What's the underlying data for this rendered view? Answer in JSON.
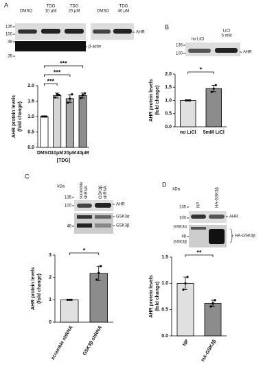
{
  "panels": [
    {
      "letter": "A",
      "lanes": [
        [
          "DMSO"
        ],
        [
          "TDG",
          "10 μM"
        ],
        [
          "TDG",
          "20 μM"
        ],
        [
          "DMSO"
        ],
        [
          "TDG",
          "40 μM"
        ]
      ],
      "markers": [
        "135",
        "100",
        "48",
        "35"
      ],
      "bands": [
        "AHR",
        "β-actin"
      ]
    },
    {
      "letter": "B",
      "lanes": [
        [
          "no LiCl"
        ],
        [
          "LiCl",
          "5 mM"
        ]
      ],
      "markers": [
        "135",
        "100"
      ],
      "bands": [
        "AHR"
      ]
    },
    {
      "letter": "C",
      "kda": "kDa",
      "lanes": [
        [
          "scramble",
          "shRNA"
        ],
        [
          "GSK3β",
          "shRNA"
        ]
      ],
      "markers": [
        "135",
        "100",
        "48"
      ],
      "bands": [
        "AHR",
        "GSK3α",
        "GSK3β"
      ]
    },
    {
      "letter": "D",
      "kda": "kDa",
      "lanes": [
        [
          "NP"
        ],
        [
          "HA-GSK3β"
        ]
      ],
      "markers": [
        "135",
        "100",
        "48"
      ],
      "bands": [
        "AHR",
        "GSK3α",
        "GSK3β",
        "HA-GSK3β"
      ]
    }
  ],
  "chart_data": [
    {
      "type": "bar",
      "y_label": [
        "AHR protein levels",
        "(fold change)"
      ],
      "x_label": "[TDG]",
      "categories": [
        "DMSO",
        "10μM",
        "20μM",
        "40μM"
      ],
      "values": [
        1.0,
        1.68,
        1.58,
        1.68
      ],
      "errors": [
        0.02,
        0.08,
        0.13,
        0.08
      ],
      "points": [
        [
          1.0,
          1.0,
          1.0
        ],
        [
          1.62,
          1.72,
          1.7
        ],
        [
          1.45,
          1.58,
          1.72
        ],
        [
          1.6,
          1.7,
          1.75
        ]
      ],
      "colors": [
        "#ffffff",
        "#d6d6d6",
        "#a8a8a8",
        "#8c8c8c"
      ],
      "significance": [
        "***",
        "***",
        "***"
      ],
      "ylim": [
        0,
        2
      ],
      "yticks": [
        {
          "value": 0,
          "label": "0.0"
        },
        {
          "value": 0.5,
          "label": "0.5"
        },
        {
          "value": 1,
          "label": "1.0"
        },
        {
          "value": 1.5,
          "label": "1.5"
        },
        {
          "value": 2,
          "label": "2.0"
        }
      ]
    },
    {
      "type": "bar",
      "y_label": [
        "AHR protein levels",
        "(fold change)"
      ],
      "categories": [
        "no LiCl",
        "5mM LiCl"
      ],
      "values": [
        1.0,
        1.45
      ],
      "errors": [
        0.02,
        0.12
      ],
      "points": [
        [
          1.0,
          1.0,
          1.0
        ],
        [
          1.32,
          1.45,
          1.58
        ]
      ],
      "colors": [
        "#e0e0e0",
        "#8c8c8c"
      ],
      "significance": [
        "*"
      ],
      "ylim": [
        0,
        2
      ],
      "yticks": [
        {
          "value": 0,
          "label": "0.0"
        },
        {
          "value": 0.5,
          "label": "0.5"
        },
        {
          "value": 1,
          "label": "1.0"
        },
        {
          "value": 1.5,
          "label": "1.5"
        },
        {
          "value": 2,
          "label": "2.0"
        }
      ]
    },
    {
      "type": "bar",
      "y_label": [
        "AHR protein levels",
        "(fold change)"
      ],
      "categories": [
        "scramble shRNA",
        "GSK3β shRNA"
      ],
      "values": [
        1.0,
        2.18
      ],
      "errors": [
        0.02,
        0.32
      ],
      "points": [
        [
          1.0,
          1.0,
          1.0
        ],
        [
          1.9,
          2.2,
          2.5
        ]
      ],
      "colors": [
        "#e0e0e0",
        "#8c8c8c"
      ],
      "significance": [
        "*"
      ],
      "ylim": [
        0,
        3
      ],
      "yticks": [
        0,
        1,
        2,
        3
      ]
    },
    {
      "type": "bar",
      "y_label": [
        "AHR protein levels",
        "(fold change)"
      ],
      "categories": [
        "NP",
        "HA-GSK3β"
      ],
      "values": [
        1.0,
        0.62
      ],
      "errors": [
        0.12,
        0.06
      ],
      "points": [
        [
          0.88,
          1.0,
          1.12
        ],
        [
          0.56,
          0.62,
          0.68
        ]
      ],
      "colors": [
        "#e0e0e0",
        "#8c8c8c"
      ],
      "significance": [
        "**"
      ],
      "ylim": [
        0,
        1.5
      ],
      "yticks": [
        {
          "value": 0,
          "label": "0.0"
        },
        {
          "value": 0.5,
          "label": "0.5"
        },
        {
          "value": 1,
          "label": "1.0"
        },
        {
          "value": 1.5,
          "label": "1.5"
        }
      ]
    }
  ]
}
